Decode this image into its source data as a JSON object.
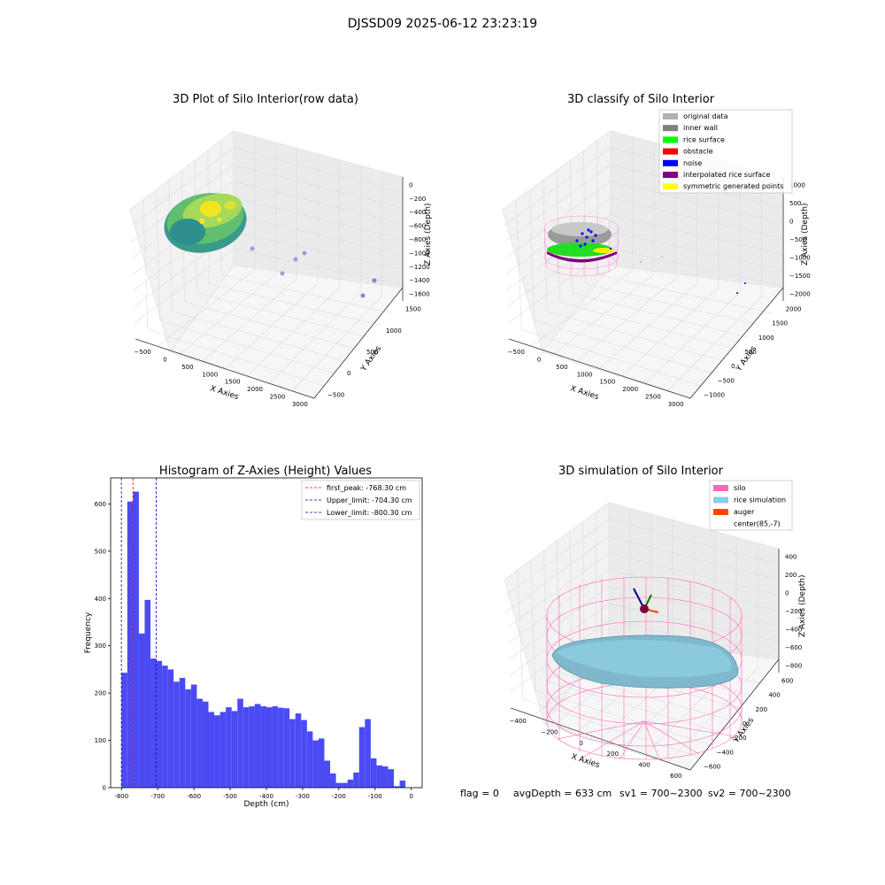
{
  "figure": {
    "suptitle": "DJSSD09 2025-06-12 23:23:19",
    "footer": {
      "flag": "flag = 0",
      "avg_depth": "avgDepth = 633 cm",
      "sv1": "sv1 = 700~2300",
      "sv2": "sv2 = 700~2300"
    }
  },
  "colors": {
    "hist_bar": "#4b4bf5",
    "first_peak": "#ff0000",
    "limits": "#0000aa",
    "original": "#b0b0b0",
    "inner_wall": "#808080",
    "rice": "#00ff00",
    "obstacle": "#ff0000",
    "noise": "#0000ff",
    "interp": "#800080",
    "symmetric": "#ffff00",
    "silo": "#ff69b4",
    "rice_sim": "#87ceeb",
    "auger": "#ff4500"
  },
  "chart_data": [
    {
      "type": "scatter",
      "title": "3D Plot of Silo Interior(row data)",
      "xlabel": "X Axies",
      "ylabel": "Y Axies",
      "zlabel": "Z Axies (Depth)",
      "x_ticks": [
        "−500",
        "0",
        "500",
        "1000",
        "1500",
        "2000",
        "2500",
        "3000"
      ],
      "y_ticks": [
        "−500",
        "0",
        "500",
        "1000",
        "1500"
      ],
      "z_ticks": [
        "0",
        "−200",
        "−400",
        "−600",
        "−800",
        "−1000",
        "−1200",
        "−1400",
        "−1600"
      ],
      "grid": true
    },
    {
      "type": "scatter",
      "title": "3D classify of Silo Interior",
      "xlabel": "X Axies",
      "ylabel": "Y Axies",
      "zlabel": "Z Axies (Depth)",
      "x_ticks": [
        "−500",
        "0",
        "500",
        "1000",
        "1500",
        "2000",
        "2500",
        "3000"
      ],
      "y_ticks": [
        "−1000",
        "−500",
        "0",
        "500",
        "1000",
        "1500",
        "2000"
      ],
      "z_ticks": [
        "1000",
        "500",
        "0",
        "−500",
        "−1000",
        "−1500",
        "−2000"
      ],
      "legend": [
        "original data",
        "inner wall",
        "rice surface",
        "obstacle",
        "noise",
        "interpolated rice surface",
        "symmetric generated points"
      ],
      "legend_position": "top-right",
      "grid": true
    },
    {
      "type": "bar",
      "title": "Histogram of Z-Axies (Height) Values",
      "xlabel": "Depth (cm)",
      "ylabel": "Frequency",
      "xlim": [
        -830,
        30
      ],
      "ylim": [
        0,
        655
      ],
      "x_ticks": [
        -800,
        -700,
        -600,
        -500,
        -400,
        -300,
        -200,
        -100,
        0
      ],
      "y_ticks": [
        0,
        100,
        200,
        300,
        400,
        500,
        600
      ],
      "bin_start": -800,
      "bin_width": 16,
      "values": [
        243,
        605,
        626,
        326,
        397,
        273,
        268,
        258,
        250,
        224,
        232,
        208,
        218,
        188,
        182,
        160,
        153,
        160,
        170,
        162,
        188,
        170,
        172,
        177,
        172,
        170,
        172,
        169,
        168,
        145,
        157,
        143,
        119,
        100,
        104,
        57,
        30,
        10,
        10,
        17,
        32,
        128,
        145,
        62,
        47,
        45,
        39,
        3,
        15
      ],
      "lines": [
        {
          "label": "first_peak: -768.30 cm",
          "x": -768.3,
          "color": "first_peak"
        },
        {
          "label": "Upper_limit: -704.30 cm",
          "x": -704.3,
          "color": "limits"
        },
        {
          "label": "Lower_limit: -800.30 cm",
          "x": -800.3,
          "color": "limits"
        }
      ],
      "legend_position": "top-right"
    },
    {
      "type": "scatter",
      "title": "3D simulation of Silo Interior",
      "xlabel": "X Axies",
      "ylabel": "Y Axies",
      "zlabel": "Z Axies (Depth)",
      "x_ticks": [
        "−400",
        "−200",
        "0",
        "200",
        "400",
        "600"
      ],
      "y_ticks": [
        "−600",
        "−400",
        "−200",
        "0",
        "200",
        "400",
        "600"
      ],
      "z_ticks": [
        "400",
        "200",
        "0",
        "−200",
        "−400",
        "−600",
        "−800"
      ],
      "legend": [
        "silo",
        "rice simulation",
        "auger",
        "center(85,-7)"
      ],
      "legend_position": "top-right",
      "grid": true
    }
  ]
}
